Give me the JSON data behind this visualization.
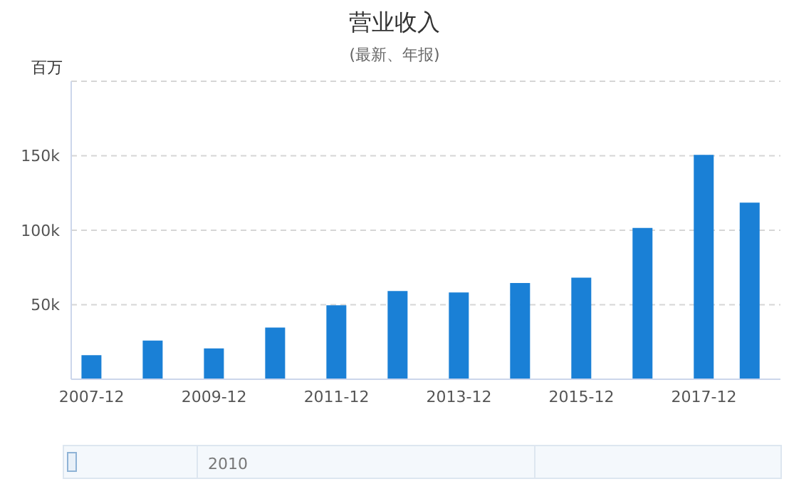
{
  "chart_data": {
    "type": "bar",
    "title": "营业收入",
    "subtitle": "(最新、年报)",
    "ylabel": "百万",
    "x": [
      "2007-12",
      "2008-12",
      "2009-12",
      "2010-12",
      "2011-12",
      "2012-12",
      "2013-12",
      "2014-12",
      "2015-12",
      "2016-12",
      "2017-12",
      "2018-09"
    ],
    "values": [
      16200,
      26000,
      20700,
      34700,
      49700,
      59200,
      58300,
      64600,
      68200,
      101600,
      150600,
      118500
    ],
    "color": "#1a80d6",
    "xlim": [
      "2007-08",
      "2019-03"
    ],
    "xticks": [
      "2007-12",
      "2009-12",
      "2011-12",
      "2013-12",
      "2015-12",
      "2017-12"
    ],
    "ylim": [
      0,
      200000
    ],
    "yticks": [
      {
        "value": 50000,
        "label": "50k"
      },
      {
        "value": 100000,
        "label": "100k"
      },
      {
        "value": 150000,
        "label": "150k"
      },
      {
        "value": 200000,
        "label": null
      }
    ],
    "grid": "y",
    "legend": false,
    "annotations": [
      "2010"
    ]
  }
}
